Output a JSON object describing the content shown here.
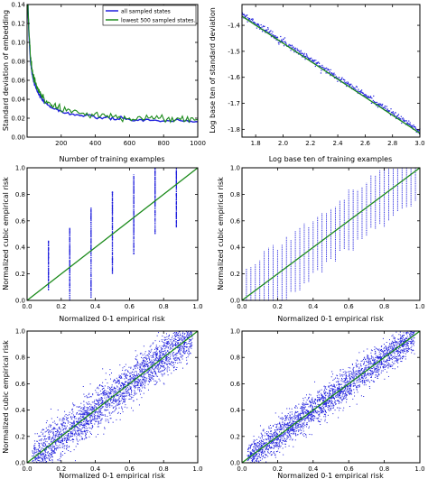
{
  "colors": {
    "blue": "#1f1fdd",
    "green": "#1a8a1a",
    "frame": "#000000"
  },
  "chart_data": [
    {
      "type": "line",
      "xlabel": "Number of training examples",
      "ylabel": "Standard deviation of embedding",
      "xlim": [
        0,
        1000
      ],
      "ylim": [
        0.0,
        0.14
      ],
      "xticks": [
        200,
        400,
        600,
        800,
        1000
      ],
      "yticks": [
        0.0,
        0.02,
        0.04,
        0.06,
        0.08,
        0.1,
        0.12,
        0.14
      ],
      "xtick_labels": [
        "200",
        "400",
        "600",
        "800",
        "1000"
      ],
      "ytick_labels": [
        "0.00",
        "0.02",
        "0.04",
        "0.06",
        "0.08",
        "0.10",
        "0.12",
        "0.14"
      ],
      "legend": "top-right",
      "series": [
        {
          "name": "all sampled states",
          "color": "blue",
          "x": [
            5,
            10,
            20,
            30,
            40,
            60,
            80,
            100,
            150,
            200,
            300,
            400,
            500,
            600,
            700,
            800,
            900,
            1000
          ],
          "y": [
            0.14,
            0.112,
            0.08,
            0.067,
            0.058,
            0.048,
            0.042,
            0.037,
            0.031,
            0.027,
            0.023,
            0.021,
            0.0195,
            0.0185,
            0.0178,
            0.0172,
            0.0167,
            0.0162
          ]
        },
        {
          "name": "lowest 500 sampled states.",
          "color": "green",
          "x": [
            5,
            10,
            20,
            30,
            40,
            60,
            80,
            100,
            150,
            200,
            300,
            400,
            500,
            600,
            700,
            800,
            900,
            1000
          ],
          "y": [
            0.14,
            0.115,
            0.083,
            0.07,
            0.061,
            0.051,
            0.045,
            0.04,
            0.034,
            0.03,
            0.026,
            0.023,
            0.022,
            0.021,
            0.02,
            0.0195,
            0.019,
            0.0185
          ]
        }
      ]
    },
    {
      "type": "scatter",
      "xlabel": "Log base ten of training examples",
      "ylabel": "Log base ten of standard deviation",
      "xlim": [
        1.7,
        3.0
      ],
      "ylim": [
        -1.83,
        -1.32
      ],
      "xticks": [
        1.8,
        2.0,
        2.2,
        2.4,
        2.6,
        2.8,
        3.0
      ],
      "yticks": [
        -1.8,
        -1.7,
        -1.6,
        -1.5,
        -1.4
      ],
      "xtick_labels": [
        "1.8",
        "2.0",
        "2.2",
        "2.4",
        "2.6",
        "2.8",
        "3.0"
      ],
      "ytick_labels": [
        "-1.8",
        "-1.7",
        "-1.6",
        "-1.5",
        "-1.4"
      ],
      "fit_line": {
        "color": "green",
        "x": [
          1.7,
          3.0
        ],
        "y": [
          -1.365,
          -1.815
        ]
      },
      "points": {
        "color": "blue",
        "x_range": [
          1.7,
          3.0
        ],
        "slope": -0.346,
        "intercept": -0.77,
        "jitter": 0.006
      }
    },
    {
      "type": "scatter",
      "xlabel": "Normalized 0-1 empirical risk",
      "ylabel": "Normalized cubic empirical risk",
      "xlim": [
        0.0,
        1.0
      ],
      "ylim": [
        0.0,
        1.0
      ],
      "xticks": [
        0.0,
        0.2,
        0.4,
        0.6,
        0.8,
        1.0
      ],
      "yticks": [
        0.0,
        0.2,
        0.4,
        0.6,
        0.8,
        1.0
      ],
      "xtick_labels": [
        "0.0",
        "0.2",
        "0.4",
        "0.6",
        "0.8",
        "1.0"
      ],
      "ytick_labels": [
        "0.0",
        "0.2",
        "0.4",
        "0.6",
        "0.8",
        "1.0"
      ],
      "diagonal": [
        [
          0,
          0
        ],
        [
          1,
          1
        ]
      ],
      "columns": [
        {
          "x": 0.125,
          "ymin": 0.08,
          "ymax": 0.45
        },
        {
          "x": 0.25,
          "ymin": 0.0,
          "ymax": 0.55
        },
        {
          "x": 0.375,
          "ymin": 0.02,
          "ymax": 0.7
        },
        {
          "x": 0.5,
          "ymin": 0.2,
          "ymax": 0.82
        },
        {
          "x": 0.625,
          "ymin": 0.35,
          "ymax": 0.95
        },
        {
          "x": 0.75,
          "ymin": 0.5,
          "ymax": 1.0
        },
        {
          "x": 0.875,
          "ymin": 0.55,
          "ymax": 1.0
        }
      ]
    },
    {
      "type": "scatter",
      "xlabel": "Normalized 0-1 empirical risk",
      "ylabel": "Normalized cubic empirical risk",
      "xlim": [
        0.0,
        1.0
      ],
      "ylim": [
        0.0,
        1.0
      ],
      "xticks": [
        0.0,
        0.2,
        0.4,
        0.6,
        0.8,
        1.0
      ],
      "yticks": [
        0.0,
        0.2,
        0.4,
        0.6,
        0.8,
        1.0
      ],
      "xtick_labels": [
        "0.0",
        "0.2",
        "0.4",
        "0.6",
        "0.8",
        "1.0"
      ],
      "ytick_labels": [
        "0.0",
        "0.2",
        "0.4",
        "0.6",
        "0.8",
        "1.0"
      ],
      "diagonal": [
        [
          0,
          0
        ],
        [
          1,
          1
        ]
      ],
      "column_count": 40,
      "column_halfwidth": 0.25
    },
    {
      "type": "scatter",
      "xlabel": "Normalized 0-1 empirical risk",
      "ylabel": "Normalized cubic empirical risk",
      "xlim": [
        0.0,
        1.0
      ],
      "ylim": [
        0.0,
        1.0
      ],
      "xticks": [
        0.0,
        0.2,
        0.4,
        0.6,
        0.8,
        1.0
      ],
      "yticks": [
        0.0,
        0.2,
        0.4,
        0.6,
        0.8,
        1.0
      ],
      "xtick_labels": [
        "0.0",
        "0.2",
        "0.4",
        "0.6",
        "0.8",
        "1.0"
      ],
      "ytick_labels": [
        "0.0",
        "0.2",
        "0.4",
        "0.6",
        "0.8",
        "1.0"
      ],
      "diagonal": [
        [
          0,
          0
        ],
        [
          1,
          1
        ]
      ],
      "cloud_count": 2600,
      "cloud_sigma": 0.075
    },
    {
      "type": "scatter",
      "xlabel": "Normalized 0-1 empirical risk",
      "ylabel": "",
      "xlim": [
        0.0,
        1.0
      ],
      "ylim": [
        0.0,
        1.0
      ],
      "xticks": [
        0.0,
        0.2,
        0.4,
        0.6,
        0.8,
        1.0
      ],
      "yticks": [
        0.0,
        0.2,
        0.4,
        0.6,
        0.8,
        1.0
      ],
      "xtick_labels": [
        "0.0",
        "0.2",
        "0.4",
        "0.6",
        "0.8",
        "1.0"
      ],
      "ytick_labels": [
        "0.0",
        "0.2",
        "0.4",
        "0.6",
        "0.8",
        "1.0"
      ],
      "diagonal": [
        [
          0,
          0
        ],
        [
          1,
          1
        ]
      ],
      "cloud_count": 2600,
      "cloud_sigma": 0.06
    }
  ]
}
